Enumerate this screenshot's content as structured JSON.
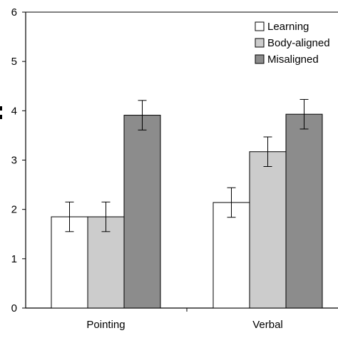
{
  "chart_data": {
    "type": "bar",
    "categories": [
      "Pointing",
      "Verbal"
    ],
    "series": [
      {
        "name": "Learning",
        "values": [
          1.85,
          2.14
        ],
        "errors": [
          0.3,
          0.3
        ],
        "color": "#ffffff"
      },
      {
        "name": "Body-aligned",
        "values": [
          1.85,
          3.17
        ],
        "errors": [
          0.3,
          0.3
        ],
        "color": "#cccccc"
      },
      {
        "name": "Misaligned",
        "values": [
          3.91,
          3.93
        ],
        "errors": [
          0.3,
          0.3
        ],
        "color": "#8c8c8c"
      }
    ],
    "y_ticks": [
      "0",
      "1",
      "2",
      "3",
      "4",
      "5",
      "6"
    ],
    "ylim": [
      0,
      6
    ],
    "xlabel": "",
    "ylabel": "",
    "grid": false,
    "legend_position": "top-right"
  }
}
